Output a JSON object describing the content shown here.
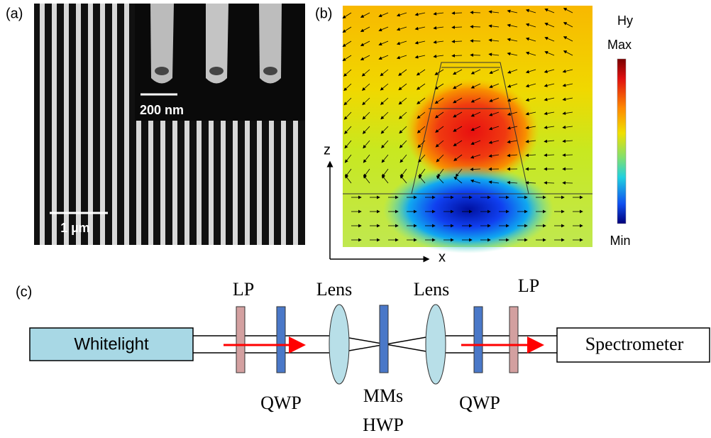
{
  "panel_a": {
    "label": "(a)",
    "inset_scale": "200 nm",
    "scale": "1 µm"
  },
  "panel_b": {
    "label": "(b)",
    "colorbar_title": "Hy",
    "max": "Max",
    "min": "Min",
    "z_axis": "z",
    "x_axis": "x"
  },
  "panel_c": {
    "label": "(c)",
    "source": "Whitelight",
    "detector": "Spectrometer",
    "top_labels": [
      "LP",
      "Lens",
      "Lens",
      "LP"
    ],
    "bottom_labels": [
      "QWP",
      "MMs",
      "HWP",
      "QWP"
    ]
  }
}
